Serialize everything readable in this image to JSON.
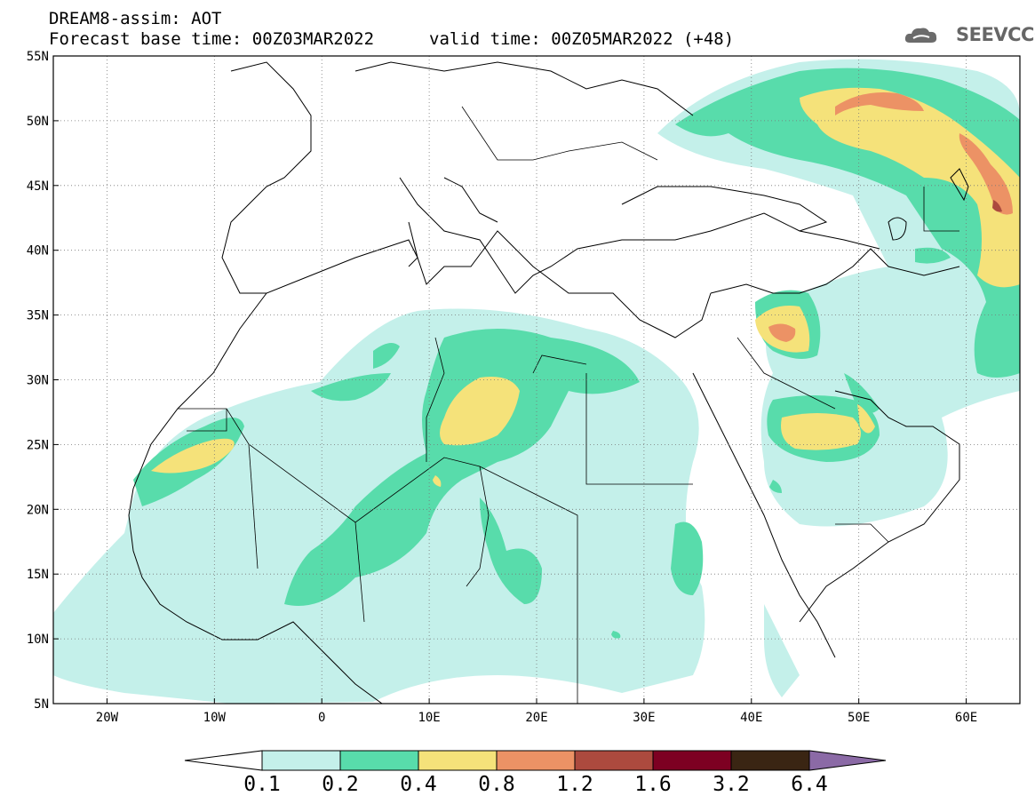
{
  "header": {
    "title": "DREAM8-assim: AOT",
    "base_time": "Forecast base time: 00Z03MAR2022",
    "valid_time": "valid time: 00Z05MAR2022 (+48)",
    "logo_text": "SEEVCCC"
  },
  "map": {
    "projection": "lat-lon",
    "lon_range": [
      -25,
      65
    ],
    "lat_range": [
      5,
      55
    ],
    "x_ticks": [
      "20W",
      "10W",
      "0",
      "10E",
      "20E",
      "30E",
      "40E",
      "50E",
      "60E"
    ],
    "y_ticks": [
      "55N",
      "50N",
      "45N",
      "40N",
      "35N",
      "30N",
      "25N",
      "20N",
      "15N",
      "10N",
      "5N"
    ],
    "grid": true
  },
  "colorbar": {
    "labels": [
      "0.1",
      "0.2",
      "0.4",
      "0.8",
      "1.2",
      "1.6",
      "3.2",
      "6.4"
    ],
    "colors": [
      "#ffffff",
      "#c4f0ea",
      "#58dcab",
      "#f5e27a",
      "#ec9265",
      "#ac4a3e",
      "#7d0022",
      "#3a2513",
      "#8b6aa6"
    ]
  }
}
